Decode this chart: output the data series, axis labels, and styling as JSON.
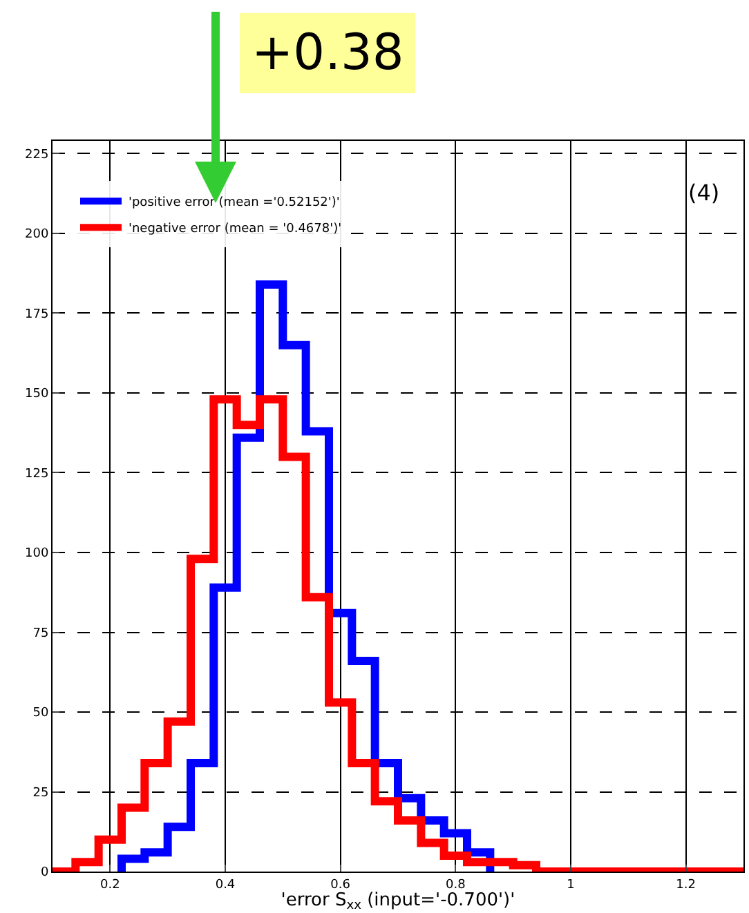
{
  "chart_data": {
    "type": "histogram",
    "xlabel": "'error S$_{xx}$ (input='-0.700')'",
    "bins": [
      0.1,
      0.14,
      0.18,
      0.22,
      0.26,
      0.3,
      0.34,
      0.38,
      0.42,
      0.46,
      0.5,
      0.54,
      0.58,
      0.62,
      0.66,
      0.7,
      0.74,
      0.78,
      0.82,
      0.86,
      0.9,
      0.94,
      1.3
    ],
    "series": [
      {
        "name": "'positive error (mean ='0.52152')'",
        "color": "#0000ff",
        "line_style": "solid",
        "bins": [
          0.22,
          0.26,
          0.3,
          0.34,
          0.38,
          0.42,
          0.46,
          0.5,
          0.54,
          0.58,
          0.62,
          0.66,
          0.7,
          0.74,
          0.78,
          0.82,
          0.86
        ],
        "values": [
          4,
          6,
          14,
          34,
          89,
          136,
          184,
          165,
          138,
          81,
          66,
          34,
          23,
          16,
          12,
          6
        ]
      },
      {
        "name": "'negative error (mean = '0.4678')'",
        "color": "#ff0000",
        "line_style": "solid",
        "values": [
          0,
          3,
          10,
          20,
          34,
          47,
          98,
          148,
          140,
          148,
          130,
          86,
          53,
          34,
          22,
          16,
          9,
          5,
          3,
          3,
          2,
          0
        ]
      }
    ],
    "xlim": [
      0.1,
      1.3
    ],
    "xticks": [
      0.2,
      0.4,
      0.6,
      0.8,
      {
        "value": 1.0,
        "label": "1"
      },
      1.2
    ],
    "ylim": [
      0,
      229
    ],
    "yticks": [
      0,
      25,
      50,
      75,
      100,
      125,
      150,
      175,
      200,
      225
    ],
    "grid": true,
    "legend": "top left",
    "annotations": [
      "(4)",
      "+0.38"
    ]
  }
}
